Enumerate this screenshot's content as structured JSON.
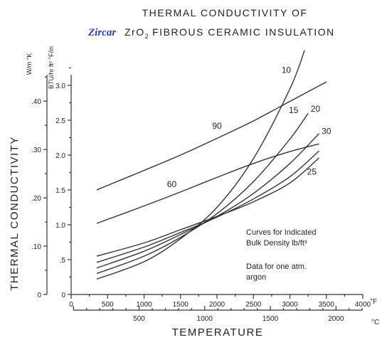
{
  "chart_data": {
    "type": "line",
    "title_line1": "THERMAL CONDUCTIVITY OF",
    "brand": "Zircar",
    "title_line2_formula_base": "ZrO",
    "title_line2_formula_sub": "2",
    "title_line2_rest": "FIBROUS CERAMIC INSULATION",
    "ylabel": "THERMAL CONDUCTIVITY",
    "y_unit_si": "W/m °K",
    "y_unit_imperial": "BTU/hr ft² °F/in",
    "xlabel": "TEMPERATURE",
    "x_unit_f": "°F",
    "x_unit_c": "°C",
    "xlim_f": [
      0,
      4000
    ],
    "ylim_imperial": [
      0,
      4.5
    ],
    "x_ticks_f": [
      "0",
      "500",
      "1000",
      "1500",
      "2000",
      "2500",
      "3000",
      "3500",
      "4000"
    ],
    "x_ticks_c": [
      "500",
      "1000",
      "1500",
      "2000"
    ],
    "y_ticks_imperial": [
      "0",
      ".5",
      "1.0",
      "1.5",
      "2.0",
      "2.5",
      "3.0"
    ],
    "y_ticks_si": [
      "0",
      ".10",
      ".20",
      ".30",
      ".40"
    ],
    "notes": [
      "Curves for Indicated",
      "Bulk Density lb/ft³",
      "Data for one atm.",
      "argon"
    ],
    "series": [
      {
        "name": "90",
        "x": [
          350,
          1000,
          1500,
          2000,
          2500,
          3000,
          3500
        ],
        "y": [
          1.5,
          1.78,
          2.0,
          2.24,
          2.49,
          2.77,
          3.05
        ]
      },
      {
        "name": "60",
        "x": [
          350,
          1000,
          1500,
          2000,
          2500,
          3000,
          3400
        ],
        "y": [
          1.02,
          1.27,
          1.47,
          1.68,
          1.88,
          2.05,
          2.16
        ]
      },
      {
        "name": "10",
        "x": [
          350,
          1000,
          1500,
          2000,
          2500,
          3000,
          3200
        ],
        "y": [
          0.22,
          0.47,
          0.8,
          1.25,
          1.95,
          2.95,
          3.5
        ]
      },
      {
        "name": "15",
        "x": [
          350,
          1000,
          1500,
          2000,
          2500,
          3000,
          3250
        ],
        "y": [
          0.3,
          0.55,
          0.82,
          1.16,
          1.62,
          2.23,
          2.6
        ]
      },
      {
        "name": "20",
        "x": [
          350,
          1000,
          1500,
          2000,
          2500,
          3000,
          3400
        ],
        "y": [
          0.38,
          0.62,
          0.86,
          1.12,
          1.45,
          1.88,
          2.31
        ]
      },
      {
        "name": "30",
        "x": [
          350,
          1000,
          1500,
          2000,
          2500,
          3000,
          3400
        ],
        "y": [
          0.46,
          0.68,
          0.89,
          1.11,
          1.37,
          1.69,
          2.06
        ]
      },
      {
        "name": "25",
        "x": [
          350,
          1000,
          1500,
          2000,
          2500,
          3000,
          3400
        ],
        "y": [
          0.55,
          0.74,
          0.93,
          1.12,
          1.33,
          1.6,
          1.96
        ]
      }
    ],
    "label_positions_data": {
      "90": [
        2000,
        2.38
      ],
      "60": [
        1380,
        1.54
      ],
      "10": [
        2950,
        3.18
      ],
      "15": [
        3050,
        2.6
      ],
      "20": [
        3350,
        2.62
      ],
      "30": [
        3500,
        2.3
      ],
      "25": [
        3300,
        1.72
      ]
    }
  }
}
